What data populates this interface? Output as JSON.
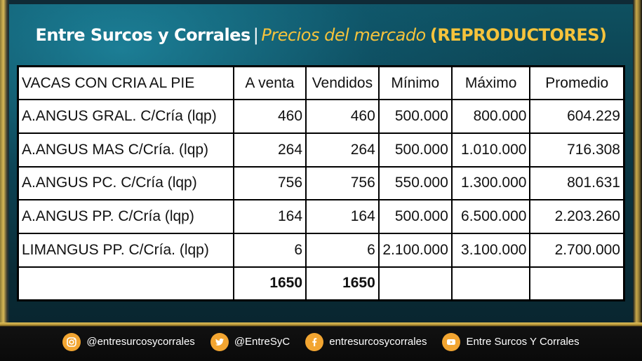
{
  "title": {
    "main": "Entre Surcos y Corrales",
    "separator": "|",
    "subtitle": "Precios del mercado",
    "tag": "(REPRODUCTORES)"
  },
  "table": {
    "headers": [
      "VACAS CON CRIA AL PIE",
      "A venta",
      "Vendidos",
      "Mínimo",
      "Máximo",
      "Promedio"
    ],
    "rows": [
      {
        "name": "A.ANGUS GRAL. C/Cría (lqp)",
        "a_venta": "460",
        "vendidos": "460",
        "minimo": "500.000",
        "maximo": "800.000",
        "promedio": "604.229"
      },
      {
        "name": "A.ANGUS MAS C/Cría. (lqp)",
        "a_venta": "264",
        "vendidos": "264",
        "minimo": "500.000",
        "maximo": "1.010.000",
        "promedio": "716.308"
      },
      {
        "name": "A.ANGUS PC. C/Cría (lqp)",
        "a_venta": "756",
        "vendidos": "756",
        "minimo": "550.000",
        "maximo": "1.300.000",
        "promedio": "801.631"
      },
      {
        "name": "A.ANGUS PP. C/Cría (lqp)",
        "a_venta": "164",
        "vendidos": "164",
        "minimo": "500.000",
        "maximo": "6.500.000",
        "promedio": "2.203.260"
      },
      {
        "name": "LIMANGUS PP. C/Cría. (lqp)",
        "a_venta": "6",
        "vendidos": "6",
        "minimo": "2.100.000",
        "maximo": "3.100.000",
        "promedio": "2.700.000"
      }
    ],
    "totals": {
      "a_venta": "1650",
      "vendidos": "1650"
    }
  },
  "footer": {
    "instagram": {
      "icon": "instagram-icon",
      "label": "@entresurcosycorrales"
    },
    "twitter": {
      "icon": "twitter-icon",
      "label": "@EntreSyC"
    },
    "facebook": {
      "icon": "facebook-icon",
      "label": "entresurcosycorrales"
    },
    "youtube": {
      "icon": "youtube-icon",
      "label": "Entre Surcos Y Corrales"
    }
  },
  "colors": {
    "accent": "#f5c33c",
    "panel": "#0b3a48",
    "badge": "#f2a531"
  }
}
